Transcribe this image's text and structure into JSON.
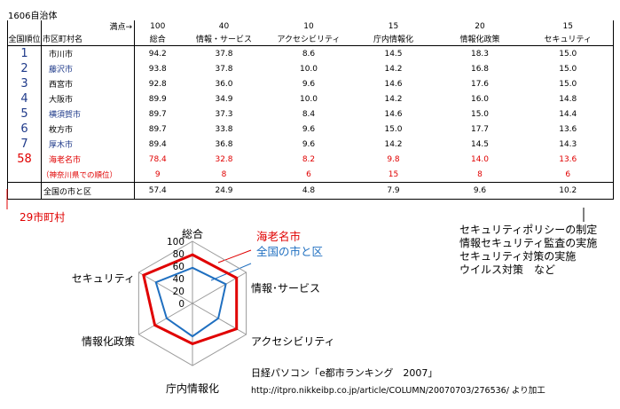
{
  "caption": "1606自治体",
  "table": {
    "points_label": "満点→",
    "headers": [
      "全国順位",
      "市区町村名",
      "総合",
      "情報・サービス",
      "アクセシビリティ",
      "庁内情報化",
      "情報化政策",
      "セキュリティ"
    ],
    "max_points": [
      "100",
      "40",
      "10",
      "15",
      "20",
      "15"
    ],
    "rows": [
      {
        "rank": "1",
        "name": "市川市",
        "values": [
          "94.2",
          "37.8",
          "8.6",
          "14.5",
          "18.3",
          "15.0"
        ]
      },
      {
        "rank": "2",
        "name": "藤沢市",
        "values": [
          "93.8",
          "37.8",
          "10.0",
          "14.2",
          "16.8",
          "15.0"
        ]
      },
      {
        "rank": "3",
        "name": "西宮市",
        "values": [
          "92.8",
          "36.0",
          "9.6",
          "14.6",
          "17.6",
          "15.0"
        ]
      },
      {
        "rank": "4",
        "name": "大阪市",
        "values": [
          "89.9",
          "34.9",
          "10.0",
          "14.2",
          "16.0",
          "14.8"
        ]
      },
      {
        "rank": "5",
        "name": "横須賀市",
        "values": [
          "89.7",
          "37.3",
          "8.4",
          "14.6",
          "15.0",
          "14.4"
        ]
      },
      {
        "rank": "6",
        "name": "枚方市",
        "values": [
          "89.7",
          "33.8",
          "9.6",
          "15.0",
          "17.7",
          "13.6"
        ]
      },
      {
        "rank": "7",
        "name": "厚木市",
        "values": [
          "89.4",
          "36.8",
          "9.6",
          "14.2",
          "14.5",
          "14.3"
        ]
      },
      {
        "rank": "58",
        "name": "海老名市",
        "values": [
          "78.4",
          "32.8",
          "8.2",
          "9.8",
          "14.0",
          "13.6"
        ]
      }
    ],
    "pref_row": {
      "label": "（神奈川県での順位）",
      "values": [
        "9",
        "8",
        "6",
        "15",
        "8",
        "6"
      ]
    },
    "average_row": {
      "label": "全国の市と区",
      "values": [
        "57.4",
        "24.9",
        "4.8",
        "7.9",
        "9.6",
        "10.2"
      ]
    }
  },
  "annotation_left": "29市町村",
  "annotation_right": [
    "セキュリティポリシーの制定",
    "情報セキュリティ監査の実施",
    "セキュリティ対策の実施",
    "ウイルス対策　など"
  ],
  "credit": "日経パソコン「e都市ランキング　2007」",
  "credit_url": "http://itpro.nikkeibp.co.jp/article/COLUMN/20070703/276536/ より加工",
  "colors": {
    "ebina": "#e00000",
    "national": "#1f6fc0",
    "blue_text": "#1f3a8a"
  },
  "chart_data": {
    "type": "radar",
    "axes": [
      "総合",
      "情報･サービス",
      "アクセシビリティ",
      "庁内情報化",
      "情報化政策",
      "セキュリティ"
    ],
    "ticks": [
      "0",
      "20",
      "40",
      "60",
      "80",
      "100"
    ],
    "range": [
      0,
      100
    ],
    "series": [
      {
        "name": "海老名市",
        "values": [
          78.4,
          82,
          82,
          65,
          70,
          91
        ],
        "color": "#e00000"
      },
      {
        "name": "全国の市と区",
        "values": [
          57.4,
          62,
          48,
          53,
          48,
          68
        ],
        "color": "#1f6fc0"
      }
    ]
  }
}
